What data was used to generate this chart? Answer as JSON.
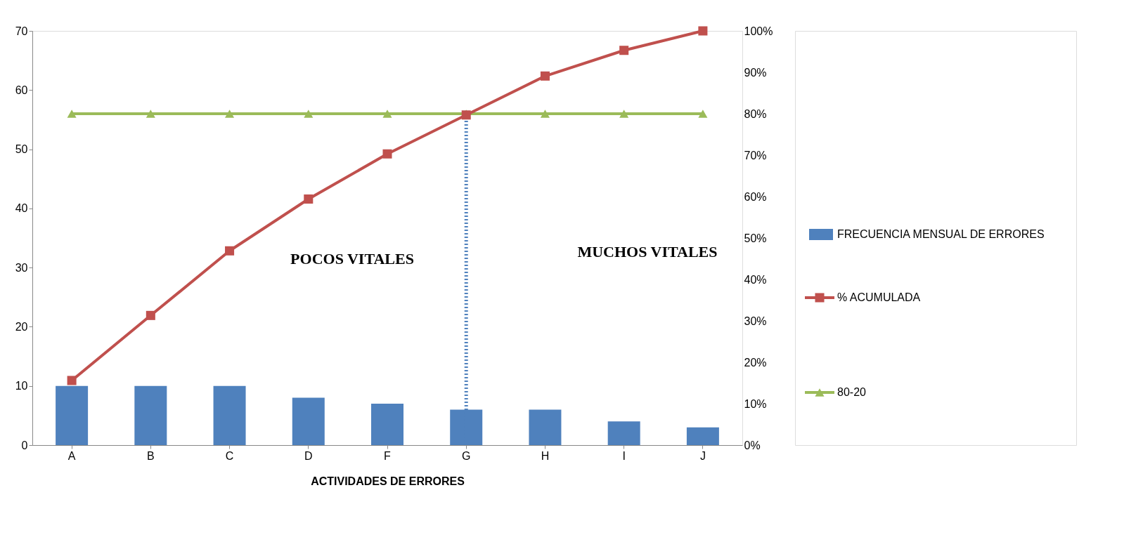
{
  "chart_data": {
    "type": "bar",
    "xlabel": "ACTIVIDADES DE ERRORES",
    "categories": [
      "A",
      "B",
      "C",
      "D",
      "F",
      "G",
      "H",
      "I",
      "J"
    ],
    "series": [
      {
        "name": "FRECUENCIA MENSUAL DE ERRORES",
        "color": "#4f81bd",
        "values": [
          10,
          10,
          10,
          8,
          7,
          6,
          6,
          4,
          3
        ]
      },
      {
        "name": "% ACUMULADA",
        "type": "line",
        "axis": "y2",
        "marker": "square",
        "color": "#c0504d",
        "values": [
          15.6,
          31.3,
          46.9,
          59.4,
          70.3,
          79.7,
          89.1,
          95.3,
          100
        ]
      },
      {
        "name": "80-20",
        "type": "line",
        "axis": "y2",
        "marker": "triangle",
        "color": "#9bbb59",
        "values": [
          80,
          80,
          80,
          80,
          80,
          80,
          80,
          80,
          80
        ]
      }
    ],
    "ylim": [
      0,
      70
    ],
    "yticks": [
      0,
      10,
      20,
      30,
      40,
      50,
      60,
      70
    ],
    "y2lim": [
      0,
      100
    ],
    "y2ticks": [
      {
        "value": 0,
        "label": "0%"
      },
      {
        "value": 10,
        "label": "10%"
      },
      {
        "value": 20,
        "label": "20%"
      },
      {
        "value": 30,
        "label": "30%"
      },
      {
        "value": 40,
        "label": "40%"
      },
      {
        "value": 50,
        "label": "50%"
      },
      {
        "value": 60,
        "label": "60%"
      },
      {
        "value": 70,
        "label": "70%"
      },
      {
        "value": 80,
        "label": "80%"
      },
      {
        "value": 90,
        "label": "90%"
      },
      {
        "value": 100,
        "label": "100%"
      }
    ],
    "ref_lines": [
      {
        "axis": "x",
        "value": "G",
        "color": "#4f81bd",
        "line_style": "dotted"
      }
    ],
    "annotations": [
      "POCOS VITALES",
      "MUCHOS VITALES"
    ],
    "legend": "right",
    "grid": false
  }
}
